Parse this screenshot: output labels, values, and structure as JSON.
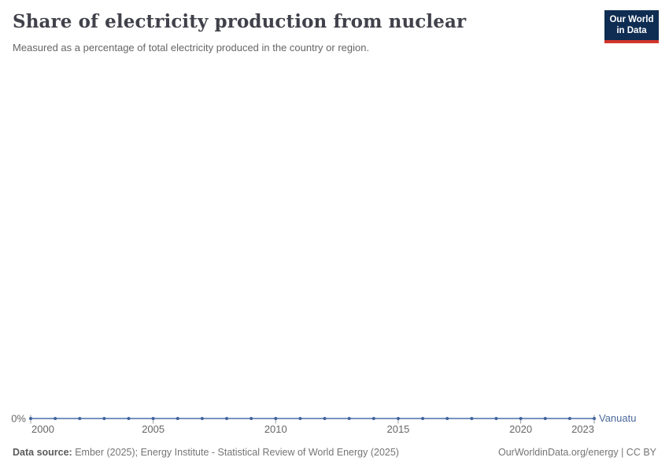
{
  "header": {
    "title": "Share of electricity production from nuclear",
    "subtitle": "Measured as a percentage of total electricity produced in the country or region."
  },
  "logo": {
    "line1": "Our World",
    "line2": "in Data",
    "background_color": "#0f2d52",
    "accent_color": "#d2352c"
  },
  "chart_data": {
    "type": "line",
    "x": [
      2000,
      2001,
      2002,
      2003,
      2004,
      2005,
      2006,
      2007,
      2008,
      2009,
      2010,
      2011,
      2012,
      2013,
      2014,
      2015,
      2016,
      2017,
      2018,
      2019,
      2020,
      2021,
      2022,
      2023
    ],
    "series": [
      {
        "name": "Vanuatu",
        "color": "#4c6ea8",
        "values": [
          0,
          0,
          0,
          0,
          0,
          0,
          0,
          0,
          0,
          0,
          0,
          0,
          0,
          0,
          0,
          0,
          0,
          0,
          0,
          0,
          0,
          0,
          0,
          0
        ]
      }
    ],
    "unit": "%",
    "y_ticks": [
      {
        "value": 0,
        "label": "0%"
      }
    ],
    "x_tick_labels": [
      2000,
      2005,
      2010,
      2015,
      2020,
      2023
    ],
    "xlim": [
      2000,
      2023
    ],
    "grid": false,
    "legend_position": "end-of-line",
    "title": "Share of electricity production from nuclear",
    "xlabel": "",
    "ylabel": ""
  },
  "colors": {
    "line": "#4c6ea8",
    "marker": "#41639e",
    "entity_label": "#4c6a9c",
    "axis_text": "#666666",
    "tick_mark": "#9a9a9a"
  },
  "footer": {
    "source_label": "Data source:",
    "source_text": " Ember (2025); Energy Institute - Statistical Review of World Energy (2025)",
    "credit": "OurWorldinData.org/energy | CC BY"
  }
}
